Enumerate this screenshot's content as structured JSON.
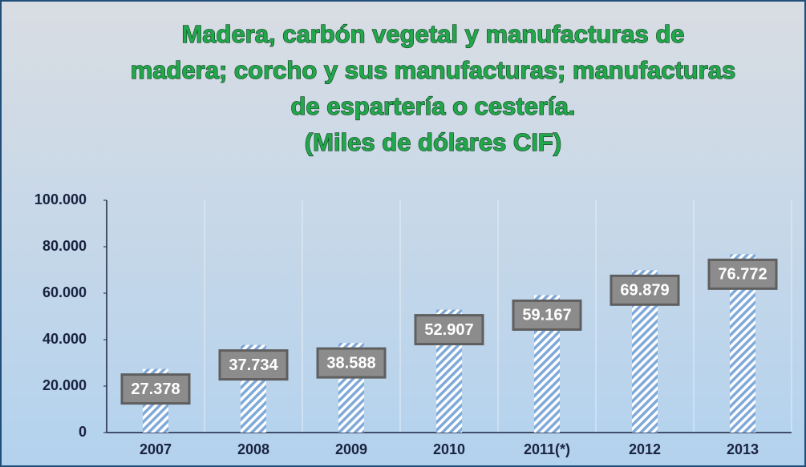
{
  "chart_data": {
    "type": "bar",
    "title": [
      "Madera, carbón vegetal y manufacturas de",
      "madera; corcho y sus manufacturas; manufacturas",
      "de espartería o cestería."
    ],
    "subtitle": "(Miles de dólares CIF)",
    "categories": [
      "2007",
      "2008",
      "2009",
      "2010",
      "2011(*)",
      "2012",
      "2013"
    ],
    "values": [
      27378,
      37734,
      38588,
      52907,
      59167,
      69879,
      76772
    ],
    "value_labels": [
      "27.378",
      "37.734",
      "38.588",
      "52.907",
      "59.167",
      "69.879",
      "76.772"
    ],
    "color": "#7fa9d9",
    "ylim": [
      0,
      100000
    ],
    "yticks": [
      0,
      {
        "value": 20000,
        "label": "20.000"
      },
      {
        "value": 40000,
        "label": "40.000"
      },
      {
        "value": 60000,
        "label": "60.000"
      },
      {
        "value": 80000,
        "label": "80.000"
      },
      {
        "value": 100000,
        "label": "100.000"
      }
    ],
    "grid": true
  }
}
